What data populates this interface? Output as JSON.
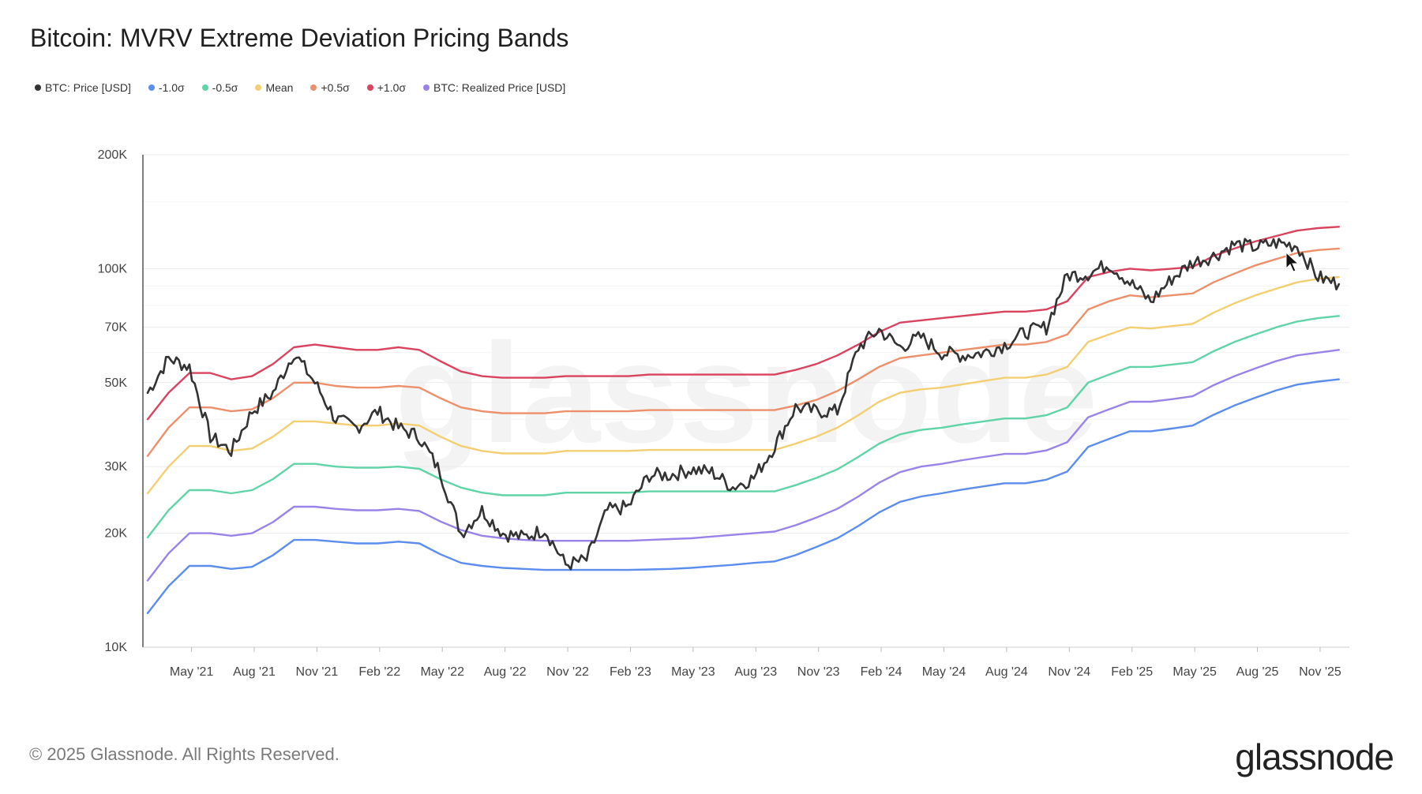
{
  "title": "Bitcoin: MVRV Extreme Deviation Pricing Bands",
  "footer": "© 2025 Glassnode. All Rights Reserved.",
  "logo_text": "glassnode",
  "watermark": "glassnode",
  "legend": [
    {
      "label": "BTC: Price [USD]",
      "color": "#333333"
    },
    {
      "label": "-1.0σ",
      "color": "#5b8def"
    },
    {
      "label": "-0.5σ",
      "color": "#5fd4a6"
    },
    {
      "label": "Mean",
      "color": "#f3cf72"
    },
    {
      "label": "+0.5σ",
      "color": "#ec8f6a"
    },
    {
      "label": "+1.0σ",
      "color": "#d9435e"
    },
    {
      "label": "BTC: Realized Price [USD]",
      "color": "#9a83e8"
    }
  ],
  "chart_data": {
    "type": "line",
    "title": "Bitcoin: MVRV Extreme Deviation Pricing Bands",
    "y_scale": "log",
    "ylim": [
      10000,
      200000
    ],
    "y_ticks": [
      {
        "value": 10000,
        "label": "10K"
      },
      {
        "value": 20000,
        "label": "20K"
      },
      {
        "value": 30000,
        "label": "30K"
      },
      {
        "value": 50000,
        "label": "50K"
      },
      {
        "value": 70000,
        "label": "70K"
      },
      {
        "value": 100000,
        "label": "100K"
      },
      {
        "value": 200000,
        "label": "200K"
      }
    ],
    "x_start": "2021-03-01",
    "x_end": "2025-12-01",
    "x_ticks": [
      {
        "t": 2.1,
        "label": "May '21"
      },
      {
        "t": 5.1,
        "label": "Aug '21"
      },
      {
        "t": 8.1,
        "label": "Nov '21"
      },
      {
        "t": 11.1,
        "label": "Feb '22"
      },
      {
        "t": 14.1,
        "label": "May '22"
      },
      {
        "t": 17.1,
        "label": "Aug '22"
      },
      {
        "t": 20.1,
        "label": "Nov '22"
      },
      {
        "t": 23.1,
        "label": "Feb '23"
      },
      {
        "t": 26.1,
        "label": "May '23"
      },
      {
        "t": 29.1,
        "label": "Aug '23"
      },
      {
        "t": 32.1,
        "label": "Nov '23"
      },
      {
        "t": 35.1,
        "label": "Feb '24"
      },
      {
        "t": 38.1,
        "label": "May '24"
      },
      {
        "t": 41.1,
        "label": "Aug '24"
      },
      {
        "t": 44.1,
        "label": "Nov '24"
      },
      {
        "t": 47.1,
        "label": "Feb '25"
      },
      {
        "t": 50.1,
        "label": "May '25"
      },
      {
        "t": 53.1,
        "label": "Aug '25"
      },
      {
        "t": 56.1,
        "label": "Nov '25"
      }
    ],
    "x": [
      0,
      1,
      2,
      3,
      4,
      5,
      6,
      7,
      8,
      9,
      10,
      11,
      12,
      13,
      14,
      15,
      16,
      17,
      18,
      19,
      20,
      21,
      22,
      23,
      24,
      25,
      26,
      27,
      28,
      29,
      30,
      31,
      32,
      33,
      34,
      35,
      36,
      37,
      38,
      39,
      40,
      41,
      42,
      43,
      44,
      45,
      46,
      47,
      48,
      49,
      50,
      51,
      52,
      53,
      54,
      55,
      56,
      57
    ],
    "x_unit": "months since Mar 2021",
    "series": [
      {
        "name": "+1.0σ",
        "color": "#d9435e",
        "values": [
          40000,
          47000,
          53000,
          53000,
          51000,
          52000,
          56000,
          62000,
          63000,
          62000,
          61000,
          61000,
          62000,
          61000,
          57000,
          53500,
          52000,
          51500,
          51500,
          51500,
          52000,
          52000,
          52000,
          52000,
          52500,
          52500,
          52500,
          52500,
          52500,
          52500,
          52500,
          54000,
          56000,
          59000,
          63000,
          68000,
          72000,
          73000,
          74000,
          75000,
          76000,
          77000,
          77000,
          78000,
          82000,
          95000,
          98000,
          100000,
          99000,
          100000,
          101000,
          108000,
          113000,
          118000,
          122000,
          126000,
          128000,
          129000
        ]
      },
      {
        "name": "+0.5σ",
        "color": "#ec8f6a",
        "values": [
          32000,
          38000,
          43000,
          43000,
          42000,
          42500,
          45500,
          50000,
          50000,
          49000,
          48500,
          48500,
          49000,
          48500,
          45500,
          43000,
          42000,
          41500,
          41500,
          41500,
          42000,
          42000,
          42000,
          42000,
          42300,
          42300,
          42300,
          42300,
          42300,
          42300,
          42300,
          43500,
          45000,
          47500,
          51000,
          55000,
          58000,
          59000,
          60000,
          61000,
          62000,
          63000,
          63000,
          64000,
          67000,
          78000,
          82000,
          85000,
          84000,
          85000,
          86000,
          92000,
          97000,
          102000,
          106000,
          110000,
          112000,
          113000
        ]
      },
      {
        "name": "Mean",
        "color": "#f3cf72",
        "values": [
          25500,
          30000,
          34000,
          34000,
          33000,
          33500,
          36000,
          39500,
          39500,
          39000,
          38500,
          38500,
          39000,
          38500,
          36000,
          34000,
          33000,
          32500,
          32500,
          32500,
          33000,
          33000,
          33000,
          33000,
          33200,
          33200,
          33200,
          33200,
          33200,
          33200,
          33200,
          34500,
          36000,
          38000,
          41000,
          44500,
          47000,
          48000,
          48500,
          49500,
          50500,
          51500,
          51500,
          52500,
          55000,
          64000,
          67000,
          70000,
          69500,
          70500,
          71500,
          76500,
          81000,
          85000,
          88500,
          92000,
          94000,
          95000
        ]
      },
      {
        "name": "-0.5σ",
        "color": "#5fd4a6",
        "values": [
          19500,
          23000,
          26000,
          26000,
          25500,
          26000,
          27800,
          30500,
          30500,
          30000,
          29800,
          29800,
          30000,
          29600,
          27800,
          26400,
          25600,
          25200,
          25200,
          25200,
          25600,
          25600,
          25600,
          25600,
          25800,
          25800,
          25800,
          25800,
          25800,
          25800,
          25800,
          26800,
          28000,
          29500,
          31800,
          34500,
          36500,
          37500,
          38000,
          38800,
          39500,
          40200,
          40200,
          41000,
          43000,
          50000,
          52500,
          55000,
          55000,
          55800,
          56600,
          60500,
          64000,
          67000,
          70000,
          72500,
          74000,
          75000
        ]
      },
      {
        "name": "BTC: Realized Price [USD]",
        "color": "#9a83e8",
        "values": [
          15000,
          17700,
          20000,
          20000,
          19700,
          20000,
          21400,
          23500,
          23500,
          23200,
          23000,
          23000,
          23200,
          22900,
          21500,
          20400,
          19700,
          19400,
          19200,
          19100,
          19100,
          19100,
          19100,
          19100,
          19200,
          19300,
          19400,
          19600,
          19800,
          20000,
          20200,
          21000,
          22000,
          23200,
          25000,
          27200,
          29000,
          30000,
          30500,
          31200,
          31800,
          32400,
          32400,
          33100,
          34800,
          40500,
          42500,
          44500,
          44500,
          45200,
          46000,
          49200,
          52000,
          54500,
          57000,
          59000,
          60000,
          61000
        ]
      },
      {
        "name": "-1.0σ",
        "color": "#5b8def",
        "values": [
          12300,
          14500,
          16400,
          16400,
          16100,
          16300,
          17500,
          19200,
          19200,
          19000,
          18800,
          18800,
          19000,
          18800,
          17600,
          16700,
          16400,
          16200,
          16100,
          16000,
          16000,
          16000,
          16000,
          16000,
          16050,
          16100,
          16200,
          16350,
          16500,
          16700,
          16850,
          17500,
          18400,
          19400,
          20900,
          22700,
          24200,
          25000,
          25500,
          26100,
          26600,
          27100,
          27100,
          27700,
          29100,
          33800,
          35500,
          37200,
          37200,
          37800,
          38500,
          41100,
          43500,
          45600,
          47700,
          49400,
          50300,
          51000
        ]
      },
      {
        "name": "BTC: Price [USD]",
        "color": "#333333",
        "values": [
          47000,
          58000,
          55000,
          36000,
          33000,
          42000,
          47000,
          60000,
          50000,
          40000,
          38000,
          42000,
          38000,
          36000,
          29000,
          20000,
          23000,
          20000,
          19500,
          20500,
          16500,
          17000,
          23000,
          23500,
          28500,
          28500,
          29500,
          29000,
          26500,
          28000,
          34000,
          43000,
          42000,
          42000,
          62000,
          69000,
          62000,
          66000,
          60000,
          59000,
          60000,
          63000,
          68000,
          70000,
          96000,
          97000,
          103000,
          92000,
          82000,
          94000,
          104000,
          108000,
          116000,
          114000,
          117000,
          115000,
          95000,
          91000
        ]
      }
    ]
  }
}
